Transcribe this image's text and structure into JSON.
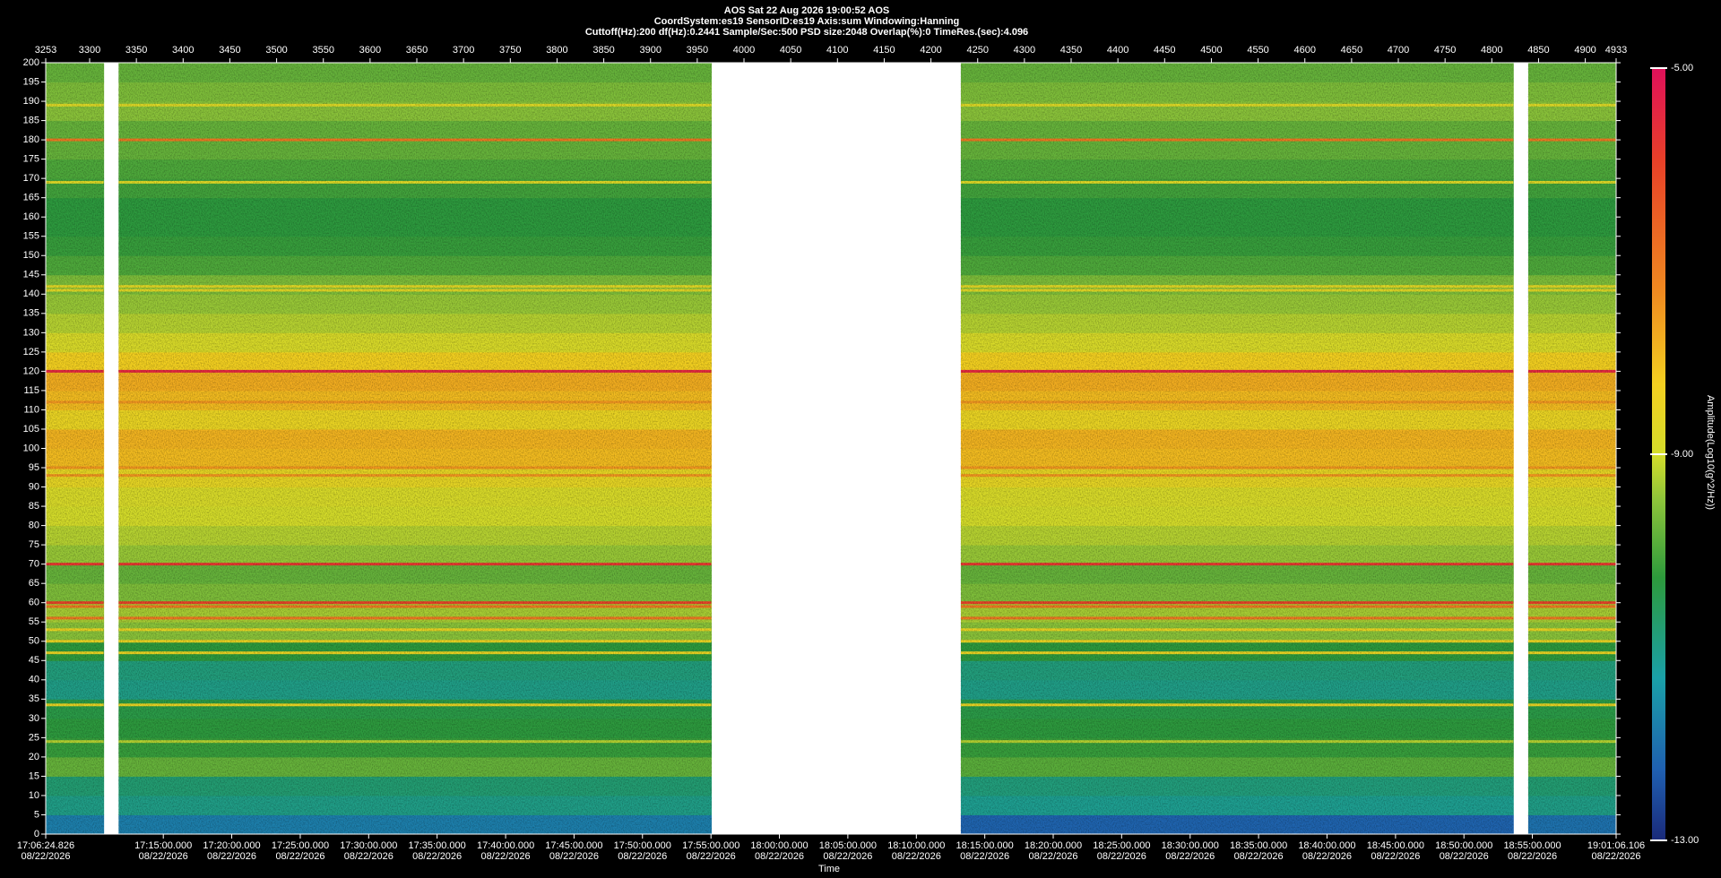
{
  "chart_data": {
    "type": "heatmap",
    "header": [
      "AOS  Sat 22 Aug 2026 19:00:52  AOS",
      "CoordSystem:es19   SensorID:es19   Axis:sum   Windowing:Hanning",
      "Cuttoff(Hz):200      df(Hz):0.2441      Sample/Sec:500      PSD size:2048      Overlap(%):0      TimeRes.(sec):4.096"
    ],
    "xlabel": "Time",
    "colorbar_label": "Amplitude(Log10(g^2/Hz))",
    "xlim": [
      3253,
      4933
    ],
    "ylim": [
      0,
      200
    ],
    "zlim": [
      -13,
      -5
    ],
    "xbins": [
      3253,
      3315,
      3331,
      3965,
      4232,
      4823,
      4839,
      4933
    ],
    "ybins": [
      0,
      5,
      10,
      15,
      20,
      25,
      30,
      35,
      40,
      45,
      50,
      55,
      60,
      65,
      70,
      75,
      80,
      85,
      90,
      95,
      100,
      105,
      110,
      115,
      120,
      125,
      130,
      135,
      140,
      145,
      150,
      155,
      160,
      165,
      170,
      175,
      180,
      185,
      190,
      195,
      200
    ],
    "z": [
      [
        -11.8,
        null,
        -11.8,
        null,
        -12.2,
        null,
        -12.0
      ],
      [
        -11.0,
        null,
        -11.0,
        null,
        -11.1,
        null,
        -11.0
      ],
      [
        -10.8,
        null,
        -10.8,
        null,
        -10.9,
        null,
        -10.8
      ],
      [
        -9.8,
        null,
        -9.8,
        null,
        -9.9,
        null,
        -9.8
      ],
      [
        -10.2,
        null,
        -10.2,
        null,
        -10.2,
        null,
        -10.2
      ],
      [
        -10.3,
        null,
        -10.3,
        null,
        -10.3,
        null,
        -10.3
      ],
      [
        -10.4,
        null,
        -10.4,
        null,
        -10.4,
        null,
        -10.4
      ],
      [
        -11.0,
        null,
        -11.0,
        null,
        -11.0,
        null,
        -11.0
      ],
      [
        -10.9,
        null,
        -10.9,
        null,
        -10.9,
        null,
        -10.9
      ],
      [
        -10.3,
        null,
        -10.3,
        null,
        -10.3,
        null,
        -10.3
      ],
      [
        -9.5,
        null,
        -9.5,
        null,
        -9.5,
        null,
        -9.5
      ],
      [
        -9.3,
        null,
        -9.3,
        null,
        -9.3,
        null,
        -9.3
      ],
      [
        -9.6,
        null,
        -9.6,
        null,
        -9.6,
        null,
        -9.6
      ],
      [
        -9.8,
        null,
        -9.8,
        null,
        -9.8,
        null,
        -9.8
      ],
      [
        -9.4,
        null,
        -9.4,
        null,
        -9.4,
        null,
        -9.4
      ],
      [
        -9.2,
        null,
        -9.2,
        null,
        -9.2,
        null,
        -9.2
      ],
      [
        -9.0,
        null,
        -9.0,
        null,
        -9.0,
        null,
        -9.0
      ],
      [
        -8.9,
        null,
        -8.9,
        null,
        -8.9,
        null,
        -8.9
      ],
      [
        -8.6,
        null,
        -8.6,
        null,
        -8.6,
        null,
        -8.6
      ],
      [
        -8.0,
        null,
        -8.0,
        null,
        -8.0,
        null,
        -8.0
      ],
      [
        -7.9,
        null,
        -7.9,
        null,
        -7.9,
        null,
        -7.9
      ],
      [
        -8.5,
        null,
        -8.5,
        null,
        -8.5,
        null,
        -8.5
      ],
      [
        -8.0,
        null,
        -8.0,
        null,
        -8.0,
        null,
        -8.0
      ],
      [
        -7.8,
        null,
        -7.8,
        null,
        -7.8,
        null,
        -7.8
      ],
      [
        -8.3,
        null,
        -8.3,
        null,
        -8.3,
        null,
        -8.3
      ],
      [
        -8.9,
        null,
        -8.9,
        null,
        -8.9,
        null,
        -8.9
      ],
      [
        -9.2,
        null,
        -9.2,
        null,
        -9.2,
        null,
        -9.2
      ],
      [
        -9.4,
        null,
        -9.4,
        null,
        -9.4,
        null,
        -9.4
      ],
      [
        -9.6,
        null,
        -9.6,
        null,
        -9.6,
        null,
        -9.6
      ],
      [
        -10.0,
        null,
        -10.0,
        null,
        -10.0,
        null,
        -10.0
      ],
      [
        -10.2,
        null,
        -10.2,
        null,
        -10.2,
        null,
        -10.2
      ],
      [
        -10.3,
        null,
        -10.3,
        null,
        -10.3,
        null,
        -10.3
      ],
      [
        -10.3,
        null,
        -10.3,
        null,
        -10.3,
        null,
        -10.3
      ],
      [
        -10.1,
        null,
        -10.1,
        null,
        -10.1,
        null,
        -10.1
      ],
      [
        -10.0,
        null,
        -10.0,
        null,
        -10.0,
        null,
        -10.0
      ],
      [
        -9.8,
        null,
        -9.8,
        null,
        -9.8,
        null,
        -9.8
      ],
      [
        -9.8,
        null,
        -9.8,
        null,
        -9.8,
        null,
        -9.8
      ],
      [
        -9.5,
        null,
        -9.5,
        null,
        -9.5,
        null,
        -9.5
      ],
      [
        -9.6,
        null,
        -9.6,
        null,
        -9.6,
        null,
        -9.6
      ],
      [
        -9.8,
        null,
        -9.8,
        null,
        -9.8,
        null,
        -9.8
      ]
    ],
    "lines": {
      "freq": [
        120,
        180,
        70,
        60,
        59,
        56,
        53,
        50,
        47,
        33.5,
        95,
        93,
        141,
        142,
        112,
        169,
        189,
        24
      ],
      "values": [
        -5.5,
        -7,
        -5.8,
        -6,
        -7,
        -7,
        -8.5,
        -8.5,
        -8.5,
        -8.5,
        -7.5,
        -7.5,
        -8.7,
        -8.7,
        -7.5,
        -8.8,
        -8.8,
        -9.2
      ]
    },
    "colorscale": [
      [
        0,
        "#1a2a7a"
      ],
      [
        0.09,
        "#1f5fb0"
      ],
      [
        0.21,
        "#1aa0a8"
      ],
      [
        0.34,
        "#2d9a3c"
      ],
      [
        0.44,
        "#8cc43a"
      ],
      [
        0.5,
        "#d4dc2a"
      ],
      [
        0.59,
        "#f4d020"
      ],
      [
        0.71,
        "#f08a20"
      ],
      [
        0.88,
        "#e84028"
      ],
      [
        1,
        "#e0105a"
      ]
    ],
    "ztick_values": [
      {
        "value": -5,
        "label": "-5.00"
      },
      {
        "value": -9,
        "label": "-9.00"
      },
      {
        "value": -13,
        "label": "-13.00"
      }
    ],
    "xticks": [
      3253,
      3300,
      3350,
      3400,
      3450,
      3500,
      3550,
      3600,
      3650,
      3700,
      3750,
      3800,
      3850,
      3900,
      3950,
      4000,
      4050,
      4100,
      4150,
      4200,
      4250,
      4300,
      4350,
      4400,
      4450,
      4500,
      4550,
      4600,
      4650,
      4700,
      4750,
      4800,
      4850,
      4900,
      4933
    ],
    "yticks": [
      0,
      5,
      10,
      15,
      20,
      25,
      30,
      35,
      40,
      45,
      50,
      55,
      60,
      65,
      70,
      75,
      80,
      85,
      90,
      95,
      100,
      105,
      110,
      115,
      120,
      125,
      130,
      135,
      140,
      145,
      150,
      155,
      160,
      165,
      170,
      175,
      180,
      185,
      190,
      195,
      200
    ],
    "x2ticks": [
      {
        "value": 3253,
        "label": "17:06:24.826"
      },
      {
        "value": 3378.8,
        "label": "17:15:00.000"
      },
      {
        "value": 3452.0,
        "label": "17:20:00.000"
      },
      {
        "value": 3525.3,
        "label": "17:25:00.000"
      },
      {
        "value": 3598.5,
        "label": "17:30:00.000"
      },
      {
        "value": 3671.7,
        "label": "17:35:00.000"
      },
      {
        "value": 3745.0,
        "label": "17:40:00.000"
      },
      {
        "value": 3818.2,
        "label": "17:45:00.000"
      },
      {
        "value": 3891.4,
        "label": "17:50:00.000"
      },
      {
        "value": 3964.7,
        "label": "17:55:00.000"
      },
      {
        "value": 4037.9,
        "label": "18:00:00.000"
      },
      {
        "value": 4111.1,
        "label": "18:05:00.000"
      },
      {
        "value": 4184.4,
        "label": "18:10:00.000"
      },
      {
        "value": 4257.6,
        "label": "18:15:00.000"
      },
      {
        "value": 4330.8,
        "label": "18:20:00.000"
      },
      {
        "value": 4404.0,
        "label": "18:25:00.000"
      },
      {
        "value": 4477.3,
        "label": "18:30:00.000"
      },
      {
        "value": 4550.5,
        "label": "18:35:00.000"
      },
      {
        "value": 4623.7,
        "label": "18:40:00.000"
      },
      {
        "value": 4697.0,
        "label": "18:45:00.000"
      },
      {
        "value": 4770.2,
        "label": "18:50:00.000"
      },
      {
        "value": 4843.4,
        "label": "18:55:00.000"
      },
      {
        "value": 4933,
        "label": "19:01:06.106"
      }
    ],
    "x2tick_dates": [
      "08/22/2026",
      "08/22/2026",
      "08/22/2026",
      "08/22/2026",
      "08/22/2026",
      "08/22/2026",
      "08/22/2026",
      "08/22/2026",
      "08/22/2026",
      "08/22/2026",
      "08/22/2026",
      "08/22/2026",
      "08/22/2026",
      "08/22/2026",
      "08/22/2026",
      "08/22/2026",
      "08/22/2026",
      "08/22/2026",
      "08/22/2026",
      "08/22/2026",
      "08/22/2026",
      "08/22/2026",
      "08/22/2026"
    ]
  }
}
